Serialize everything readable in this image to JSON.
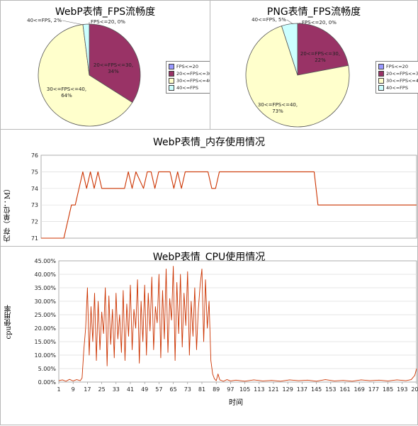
{
  "chart_data": [
    {
      "type": "pie",
      "title": "WebP表情_FPS流畅度",
      "legend_position": "right",
      "slices": [
        {
          "label": "FPS<=20",
          "value": 0,
          "text": "FPS<=20, 0%",
          "color": "#9999ff"
        },
        {
          "label": "20<=FPS<=30",
          "value": 34,
          "text": "20<=FPS<=30, 34%",
          "color": "#993366"
        },
        {
          "label": "30<=FPS<=40",
          "value": 64,
          "text": "30<=FPS<=40, 64%",
          "color": "#ffffcc"
        },
        {
          "label": "40<=FPS",
          "value": 2,
          "text": "40<=FPS, 2%",
          "color": "#ccffff"
        }
      ]
    },
    {
      "type": "pie",
      "title": "PNG表情_FPS流畅度",
      "legend_position": "right",
      "slices": [
        {
          "label": "FPS<=20",
          "value": 0,
          "text": "FPS<=20, 0%",
          "color": "#9999ff"
        },
        {
          "label": "20<=FPS<=30",
          "value": 22,
          "text": "20<=FPS<=30, 22%",
          "color": "#993366"
        },
        {
          "label": "30<=FPS<=40",
          "value": 73,
          "text": "30<=FPS<=40, 73%",
          "color": "#ffffcc"
        },
        {
          "label": "40<=FPS",
          "value": 5,
          "text": "40<=FPS, 5%",
          "color": "#ccffff"
        }
      ]
    },
    {
      "type": "line",
      "title": "WebP表情_内存使用情况",
      "ylabel": "内存（单位：M）",
      "ylim": [
        71,
        76
      ],
      "yticks": [
        "71",
        "72",
        "73",
        "74",
        "75",
        "76"
      ],
      "grid": true,
      "color": "#cc3300",
      "x_range": [
        1,
        100
      ],
      "points": [
        [
          1,
          71
        ],
        [
          7,
          71
        ],
        [
          8,
          72
        ],
        [
          9,
          73
        ],
        [
          10,
          73
        ],
        [
          11,
          74
        ],
        [
          12,
          75
        ],
        [
          13,
          74
        ],
        [
          14,
          75
        ],
        [
          15,
          74
        ],
        [
          16,
          75
        ],
        [
          17,
          74
        ],
        [
          23,
          74
        ],
        [
          24,
          75
        ],
        [
          25,
          74
        ],
        [
          26,
          75
        ],
        [
          28,
          74
        ],
        [
          29,
          75
        ],
        [
          30,
          75
        ],
        [
          31,
          74
        ],
        [
          32,
          75
        ],
        [
          35,
          75
        ],
        [
          36,
          74
        ],
        [
          37,
          75
        ],
        [
          38,
          74
        ],
        [
          39,
          75
        ],
        [
          45,
          75
        ],
        [
          46,
          74
        ],
        [
          47,
          74
        ],
        [
          48,
          75
        ],
        [
          73,
          75
        ],
        [
          74,
          73
        ],
        [
          100,
          73
        ]
      ]
    },
    {
      "type": "line",
      "title": "WebP表情_CPU使用情况",
      "xlabel": "时间",
      "ylabel": "cpu使用率",
      "ylim": [
        0,
        45
      ],
      "yticks": [
        "0.00%",
        "5.00%",
        "10.00%",
        "15.00%",
        "20.00%",
        "25.00%",
        "30.00%",
        "35.00%",
        "40.00%",
        "45.00%"
      ],
      "xticks": [
        "1",
        "9",
        "17",
        "25",
        "33",
        "41",
        "49",
        "57",
        "65",
        "73",
        "81",
        "89",
        "97",
        "105",
        "113",
        "121",
        "129",
        "137",
        "145",
        "153",
        "161",
        "169",
        "177",
        "185",
        "193",
        "201"
      ],
      "grid": true,
      "color": "#cc3300",
      "x_range": [
        1,
        201
      ],
      "points": [
        [
          1,
          0.5
        ],
        [
          3,
          0.8
        ],
        [
          5,
          0.3
        ],
        [
          7,
          1.0
        ],
        [
          9,
          0.4
        ],
        [
          11,
          0.9
        ],
        [
          13,
          0.5
        ],
        [
          14,
          1.5
        ],
        [
          15,
          12
        ],
        [
          16,
          20
        ],
        [
          17,
          35
        ],
        [
          18,
          10
        ],
        [
          19,
          28
        ],
        [
          20,
          15
        ],
        [
          21,
          33
        ],
        [
          22,
          8
        ],
        [
          23,
          30
        ],
        [
          24,
          12
        ],
        [
          25,
          26
        ],
        [
          26,
          18
        ],
        [
          27,
          35
        ],
        [
          28,
          6
        ],
        [
          29,
          32
        ],
        [
          30,
          14
        ],
        [
          31,
          27
        ],
        [
          32,
          9
        ],
        [
          33,
          33
        ],
        [
          34,
          16
        ],
        [
          35,
          25
        ],
        [
          36,
          11
        ],
        [
          37,
          34
        ],
        [
          38,
          8
        ],
        [
          39,
          29
        ],
        [
          40,
          17
        ],
        [
          41,
          36
        ],
        [
          42,
          12
        ],
        [
          43,
          27
        ],
        [
          44,
          20
        ],
        [
          45,
          38
        ],
        [
          46,
          7
        ],
        [
          47,
          30
        ],
        [
          48,
          15
        ],
        [
          49,
          36
        ],
        [
          50,
          10
        ],
        [
          51,
          33
        ],
        [
          52,
          19
        ],
        [
          53,
          39
        ],
        [
          54,
          12
        ],
        [
          55,
          28
        ],
        [
          56,
          22
        ],
        [
          57,
          40
        ],
        [
          58,
          9
        ],
        [
          59,
          34
        ],
        [
          60,
          16
        ],
        [
          61,
          42
        ],
        [
          62,
          11
        ],
        [
          63,
          31
        ],
        [
          64,
          23
        ],
        [
          65,
          43
        ],
        [
          66,
          8
        ],
        [
          67,
          37
        ],
        [
          68,
          18
        ],
        [
          69,
          40
        ],
        [
          70,
          13
        ],
        [
          71,
          33
        ],
        [
          72,
          21
        ],
        [
          73,
          41
        ],
        [
          74,
          10
        ],
        [
          75,
          30
        ],
        [
          76,
          17
        ],
        [
          77,
          35
        ],
        [
          78,
          12
        ],
        [
          79,
          27
        ],
        [
          80,
          36
        ],
        [
          81,
          42
        ],
        [
          82,
          15
        ],
        [
          83,
          38
        ],
        [
          84,
          20
        ],
        [
          85,
          30
        ],
        [
          86,
          8
        ],
        [
          87,
          3
        ],
        [
          88,
          1.2
        ],
        [
          89,
          0.5
        ],
        [
          90,
          3
        ],
        [
          91,
          0.8
        ],
        [
          93,
          0.3
        ],
        [
          95,
          0.9
        ],
        [
          97,
          0.4
        ],
        [
          100,
          0.7
        ],
        [
          105,
          0.3
        ],
        [
          110,
          0.8
        ],
        [
          115,
          0.4
        ],
        [
          120,
          0.6
        ],
        [
          125,
          0.3
        ],
        [
          130,
          0.8
        ],
        [
          135,
          0.5
        ],
        [
          140,
          0.7
        ],
        [
          145,
          0.3
        ],
        [
          150,
          0.9
        ],
        [
          155,
          0.4
        ],
        [
          160,
          0.6
        ],
        [
          165,
          0.3
        ],
        [
          170,
          0.8
        ],
        [
          175,
          0.5
        ],
        [
          180,
          0.7
        ],
        [
          185,
          0.4
        ],
        [
          190,
          0.8
        ],
        [
          195,
          0.5
        ],
        [
          198,
          0.9
        ],
        [
          200,
          2.5
        ],
        [
          201,
          5.0
        ]
      ]
    }
  ]
}
